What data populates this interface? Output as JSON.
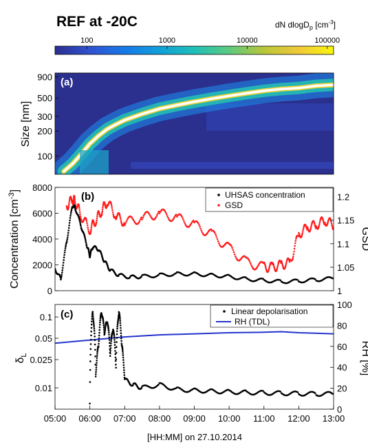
{
  "title": "REF at -20C",
  "xlabel": "[HH:MM] on 27.10.2014",
  "chart_data": [
    {
      "panel": "a",
      "type": "heatmap",
      "panel_label": "(a)",
      "colorbar": {
        "label_main": "dN dlogD",
        "label_sub": "p",
        "label_unit_open": " [cm",
        "label_unit_exp": "-3",
        "label_unit_close": "]",
        "scale": "log",
        "range": [
          40,
          120000
        ],
        "ticks": [
          100,
          1000,
          10000,
          100000
        ],
        "tick_labels": [
          "100",
          "1000",
          "10000",
          "100000"
        ],
        "colors": [
          "#2b2f8e",
          "#3052d0",
          "#1779e8",
          "#11a0d8",
          "#1fbfb8",
          "#5cca7f",
          "#b8c63a",
          "#f1c93a",
          "#f9f50f"
        ]
      },
      "xlim": [
        "05:00",
        "13:00"
      ],
      "ylabel": "Size [nm]",
      "yscale": "log",
      "ylim": [
        60,
        1000
      ],
      "yticks": [
        100,
        200,
        300,
        500,
        900
      ],
      "ytick_labels": [
        "100",
        "200",
        "300",
        "500",
        "900"
      ],
      "mode_diameter": {
        "x": [
          "05:15",
          "05:30",
          "05:45",
          "06:00",
          "06:15",
          "06:30",
          "06:45",
          "07:00",
          "07:30",
          "08:00",
          "08:30",
          "09:00",
          "09:30",
          "10:00",
          "10:30",
          "11:00",
          "11:30",
          "12:00",
          "12:30",
          "13:00"
        ],
        "y": [
          65,
          80,
          105,
          140,
          175,
          210,
          240,
          270,
          320,
          370,
          410,
          450,
          490,
          530,
          570,
          610,
          640,
          660,
          700,
          720
        ]
      }
    },
    {
      "panel": "b",
      "type": "scatter",
      "panel_label": "(b)",
      "ylabel_left": "Concentration [cm",
      "ylabel_left_exp": "-3",
      "ylabel_left_close": "]",
      "ylabel_right": "GSD",
      "ylim_left": [
        0,
        8000
      ],
      "yticks_left": [
        0,
        2000,
        4000,
        6000,
        8000
      ],
      "ylim_right": [
        1.0,
        1.22
      ],
      "yticks_right": [
        1,
        1.05,
        1.1,
        1.15,
        1.2
      ],
      "ytick_labels_right": [
        "1",
        "1.05",
        "1.1",
        "1.15",
        "1.2"
      ],
      "legend_position": "top-right",
      "series": [
        {
          "name": "UHSAS concentration",
          "color": "#000000",
          "axis": "left",
          "x": [
            "05:00",
            "05:10",
            "05:20",
            "05:30",
            "05:35",
            "05:45",
            "05:55",
            "06:00",
            "06:05",
            "06:15",
            "06:25",
            "06:35",
            "06:50",
            "07:10",
            "07:30",
            "08:00",
            "08:30",
            "09:00",
            "09:30",
            "10:00",
            "10:30",
            "11:00",
            "11:30",
            "12:00",
            "12:30",
            "13:00"
          ],
          "y": [
            1700,
            900,
            3800,
            6600,
            6400,
            5000,
            3500,
            2700,
            3400,
            3200,
            2300,
            1600,
            1200,
            1050,
            1100,
            1200,
            1300,
            1300,
            1200,
            1100,
            900,
            800,
            700,
            750,
            850,
            950
          ]
        },
        {
          "name": "GSD",
          "color": "#ff1a1a",
          "axis": "right",
          "x": [
            "05:20",
            "05:30",
            "05:35",
            "05:45",
            "06:00",
            "06:10",
            "06:20",
            "06:30",
            "06:45",
            "07:00",
            "07:30",
            "08:00",
            "08:30",
            "09:00",
            "09:30",
            "10:00",
            "10:30",
            "11:00",
            "11:15",
            "11:30",
            "11:45",
            "12:00",
            "12:15",
            "12:30",
            "12:45",
            "13:00"
          ],
          "y": [
            1.18,
            1.195,
            1.19,
            1.16,
            1.13,
            1.15,
            1.17,
            1.19,
            1.16,
            1.145,
            1.155,
            1.165,
            1.155,
            1.14,
            1.12,
            1.09,
            1.06,
            1.05,
            1.05,
            1.055,
            1.06,
            1.12,
            1.135,
            1.14,
            1.15,
            1.14
          ]
        }
      ]
    },
    {
      "panel": "c",
      "type": "scatter",
      "panel_label": "(c)",
      "ylabel_left": "δ",
      "ylabel_left_sub": "L",
      "ylabel_right": "RH [%]",
      "yscale_left": "log",
      "ylim_left": [
        0.005,
        0.15
      ],
      "yticks_left": [
        0.01,
        0.025,
        0.05,
        0.1
      ],
      "ytick_labels_left": [
        "0.01",
        "0.025",
        "0.05",
        "0.1"
      ],
      "ylim_right": [
        0,
        100
      ],
      "yticks_right": [
        0,
        20,
        40,
        60,
        80,
        100
      ],
      "xticks": [
        "05:00",
        "06:00",
        "07:00",
        "08:00",
        "09:00",
        "10:00",
        "11:00",
        "12:00",
        "13:00"
      ],
      "legend_position": "top-right",
      "series": [
        {
          "name": "Linear depolarisation",
          "color": "#000000",
          "axis": "left",
          "x": [
            "06:00",
            "06:05",
            "06:10",
            "06:15",
            "06:20",
            "06:25",
            "06:30",
            "06:35",
            "06:40",
            "06:45",
            "06:50",
            "06:55",
            "07:00",
            "07:15",
            "07:30",
            "08:00",
            "08:30",
            "09:00",
            "09:30",
            "10:00",
            "10:30",
            "11:00",
            "11:30",
            "12:00",
            "12:30",
            "13:00"
          ],
          "y": [
            0.006,
            0.12,
            0.015,
            0.04,
            0.12,
            0.06,
            0.09,
            0.03,
            0.07,
            0.02,
            0.12,
            0.04,
            0.013,
            0.011,
            0.01,
            0.011,
            0.0095,
            0.0092,
            0.009,
            0.0088,
            0.0086,
            0.0085,
            0.0084,
            0.0083,
            0.0082,
            0.0082
          ]
        },
        {
          "name": "RH (TDL)",
          "color": "#2233cc",
          "axis": "right",
          "x": [
            "05:00",
            "06:00",
            "07:00",
            "08:00",
            "09:00",
            "10:00",
            "11:00",
            "11:30",
            "12:00",
            "12:30",
            "13:00"
          ],
          "y": [
            63,
            66,
            69,
            71,
            72,
            73,
            73.5,
            74,
            73,
            72.5,
            72
          ]
        }
      ]
    }
  ]
}
